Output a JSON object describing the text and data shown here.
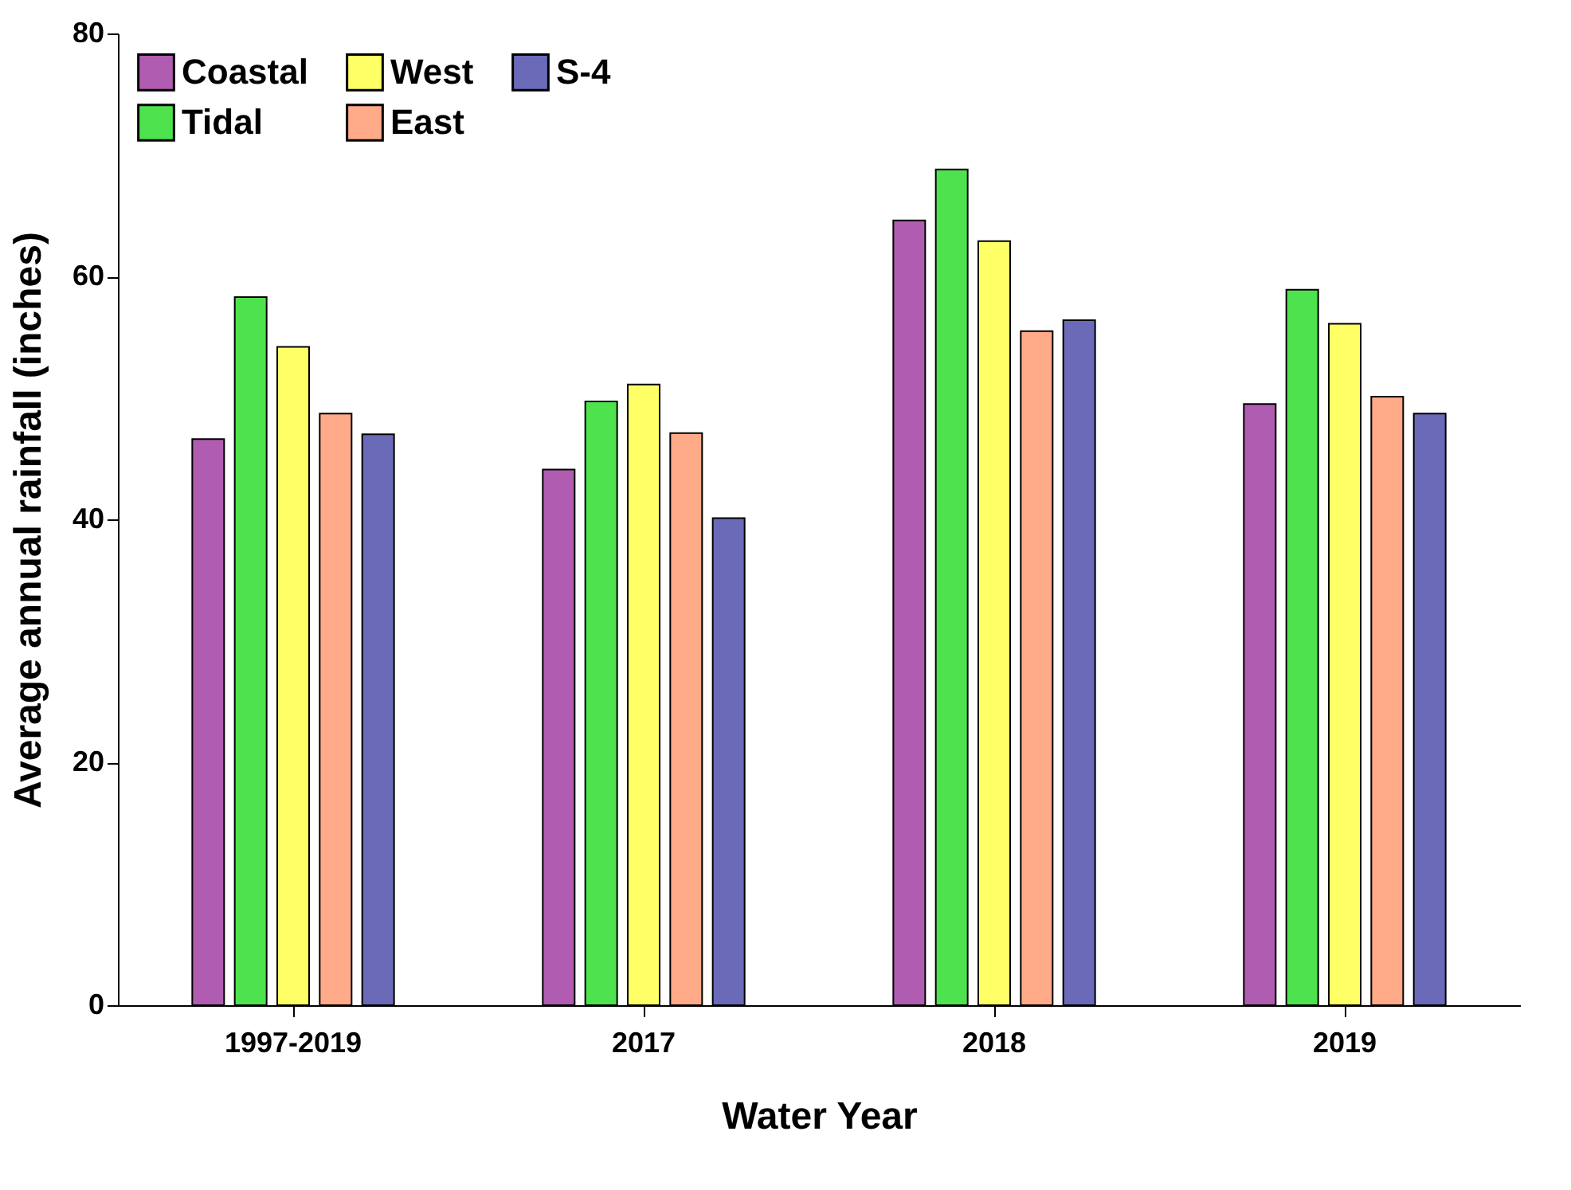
{
  "chart_data": {
    "type": "bar",
    "xlabel": "Water Year",
    "ylabel": "Average annual rainfall (inches)",
    "categories": [
      "1997-2019",
      "2017",
      "2018",
      "2019"
    ],
    "series": [
      {
        "name": "Coastal",
        "color": "#b05cb0",
        "values": [
          46.6,
          44.1,
          64.6,
          49.5
        ]
      },
      {
        "name": "Tidal",
        "color": "#4ee34e",
        "values": [
          58.3,
          49.7,
          68.8,
          58.9
        ]
      },
      {
        "name": "West",
        "color": "#ffff66",
        "values": [
          54.2,
          51.1,
          62.9,
          56.1
        ]
      },
      {
        "name": "East",
        "color": "#ffaa88",
        "values": [
          48.7,
          47.1,
          55.5,
          50.1
        ]
      },
      {
        "name": "S-4",
        "color": "#6a6ab8",
        "values": [
          47.0,
          40.1,
          56.4,
          48.7
        ]
      }
    ],
    "ylim": [
      0,
      80
    ],
    "yticks": [
      0,
      20,
      40,
      60,
      80
    ],
    "grid": false,
    "legend": "top left"
  }
}
